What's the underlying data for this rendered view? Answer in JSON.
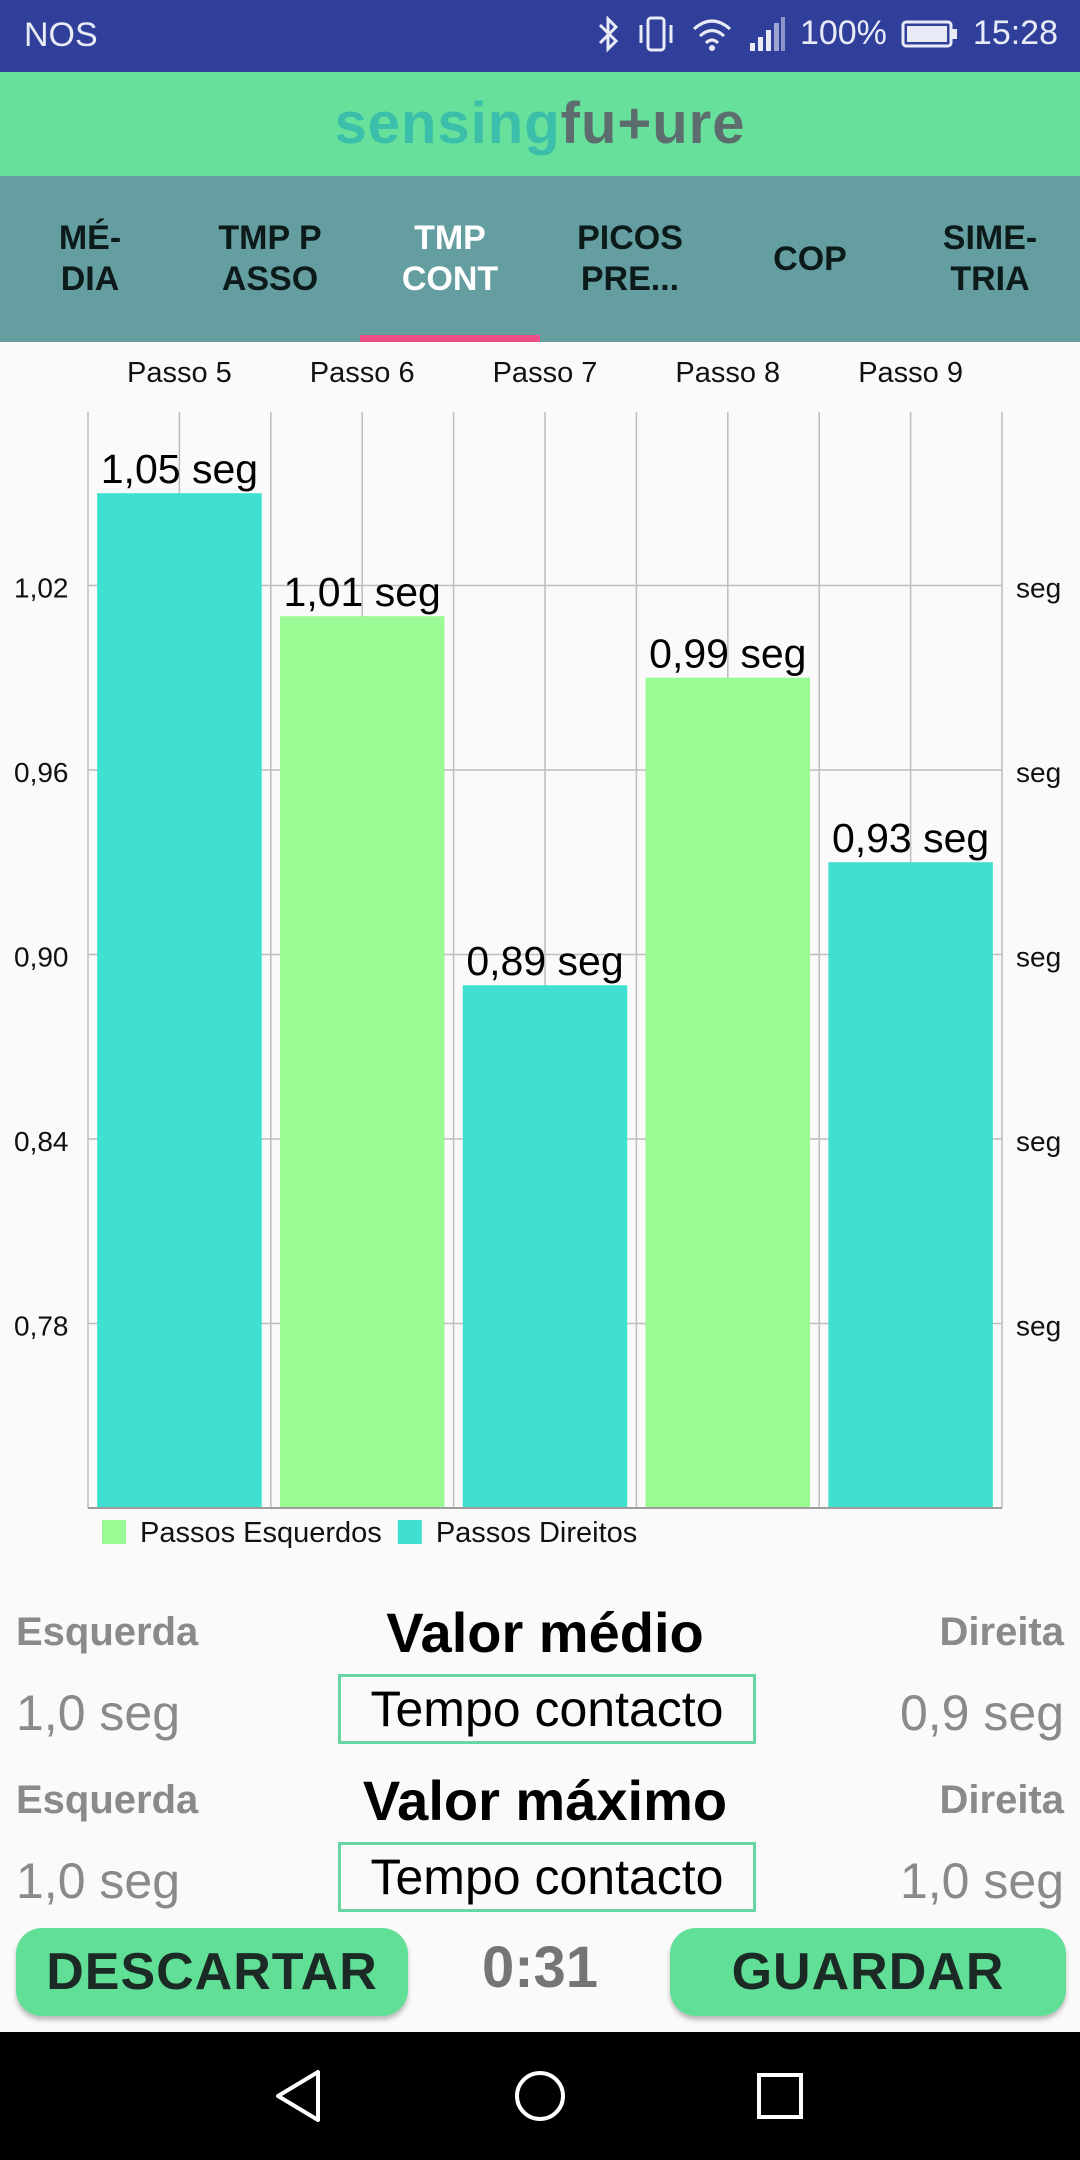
{
  "status_bar": {
    "carrier": "NOS",
    "battery": "100%",
    "time": "15:28",
    "icons": [
      "bluetooth-icon",
      "vibrate-icon",
      "wifi-icon",
      "signal-icon",
      "battery-icon"
    ]
  },
  "header": {
    "logo_part1": "sensing",
    "logo_part2": "fu+ure"
  },
  "tabs": [
    {
      "label": "MÉ-\nDIA",
      "active": false
    },
    {
      "label": "TMP P\nASSO",
      "active": false
    },
    {
      "label": "TMP\nCONT",
      "active": true
    },
    {
      "label": "PICOS\nPRE...",
      "active": false
    },
    {
      "label": "COP",
      "active": false
    },
    {
      "label": "SIME-\nTRIA",
      "active": false
    }
  ],
  "chart_data": {
    "type": "bar",
    "categories": [
      "Passo 5",
      "Passo 6",
      "Passo 7",
      "Passo 8",
      "Passo 9"
    ],
    "values": [
      1.05,
      1.01,
      0.89,
      0.99,
      0.93
    ],
    "value_labels": [
      "1,05 seg",
      "1,01 seg",
      "0,89 seg",
      "0,99 seg",
      "0,93 seg"
    ],
    "bar_series": [
      "Passos Direitos",
      "Passos Esquerdos",
      "Passos Direitos",
      "Passos Esquerdos",
      "Passos Direitos"
    ],
    "y_ticks": [
      0.78,
      0.84,
      0.9,
      0.96,
      1.02
    ],
    "y_tick_labels": [
      "0,78",
      "0,84",
      "0,90",
      "0,96",
      "1,02"
    ],
    "right_tick_label": "seg",
    "ylim": [
      0.72,
      1.0764
    ],
    "x_axis_position": "top",
    "grid": true,
    "legend": [
      {
        "name": "Passos Esquerdos",
        "color": "#9afb94"
      },
      {
        "name": "Passos Direitos",
        "color": "#40e0d0"
      }
    ],
    "legend_placement": "bottom-left"
  },
  "stats": {
    "mean": {
      "left_label": "Esquerda",
      "left_value": "1,0 seg",
      "title": "Valor médio",
      "metric": "Tempo contacto",
      "right_label": "Direita",
      "right_value": "0,9 seg"
    },
    "max": {
      "left_label": "Esquerda",
      "left_value": "1,0 seg",
      "title": "Valor máximo",
      "metric": "Tempo contacto",
      "right_label": "Direita",
      "right_value": "1,0 seg"
    }
  },
  "actions": {
    "discard_label": "DESCARTAR",
    "timer": "0:31",
    "save_label": "GUARDAR"
  },
  "nav": {
    "icons": [
      "back-icon",
      "home-icon",
      "recents-icon"
    ]
  },
  "colors": {
    "status_bar": "#30409a",
    "header": "#67e09b",
    "tab_bar": "#649ea0",
    "tab_indicator": "#ef4f86",
    "left_bar": "#9afb94",
    "right_bar": "#40e0d0",
    "button": "#61df97"
  }
}
